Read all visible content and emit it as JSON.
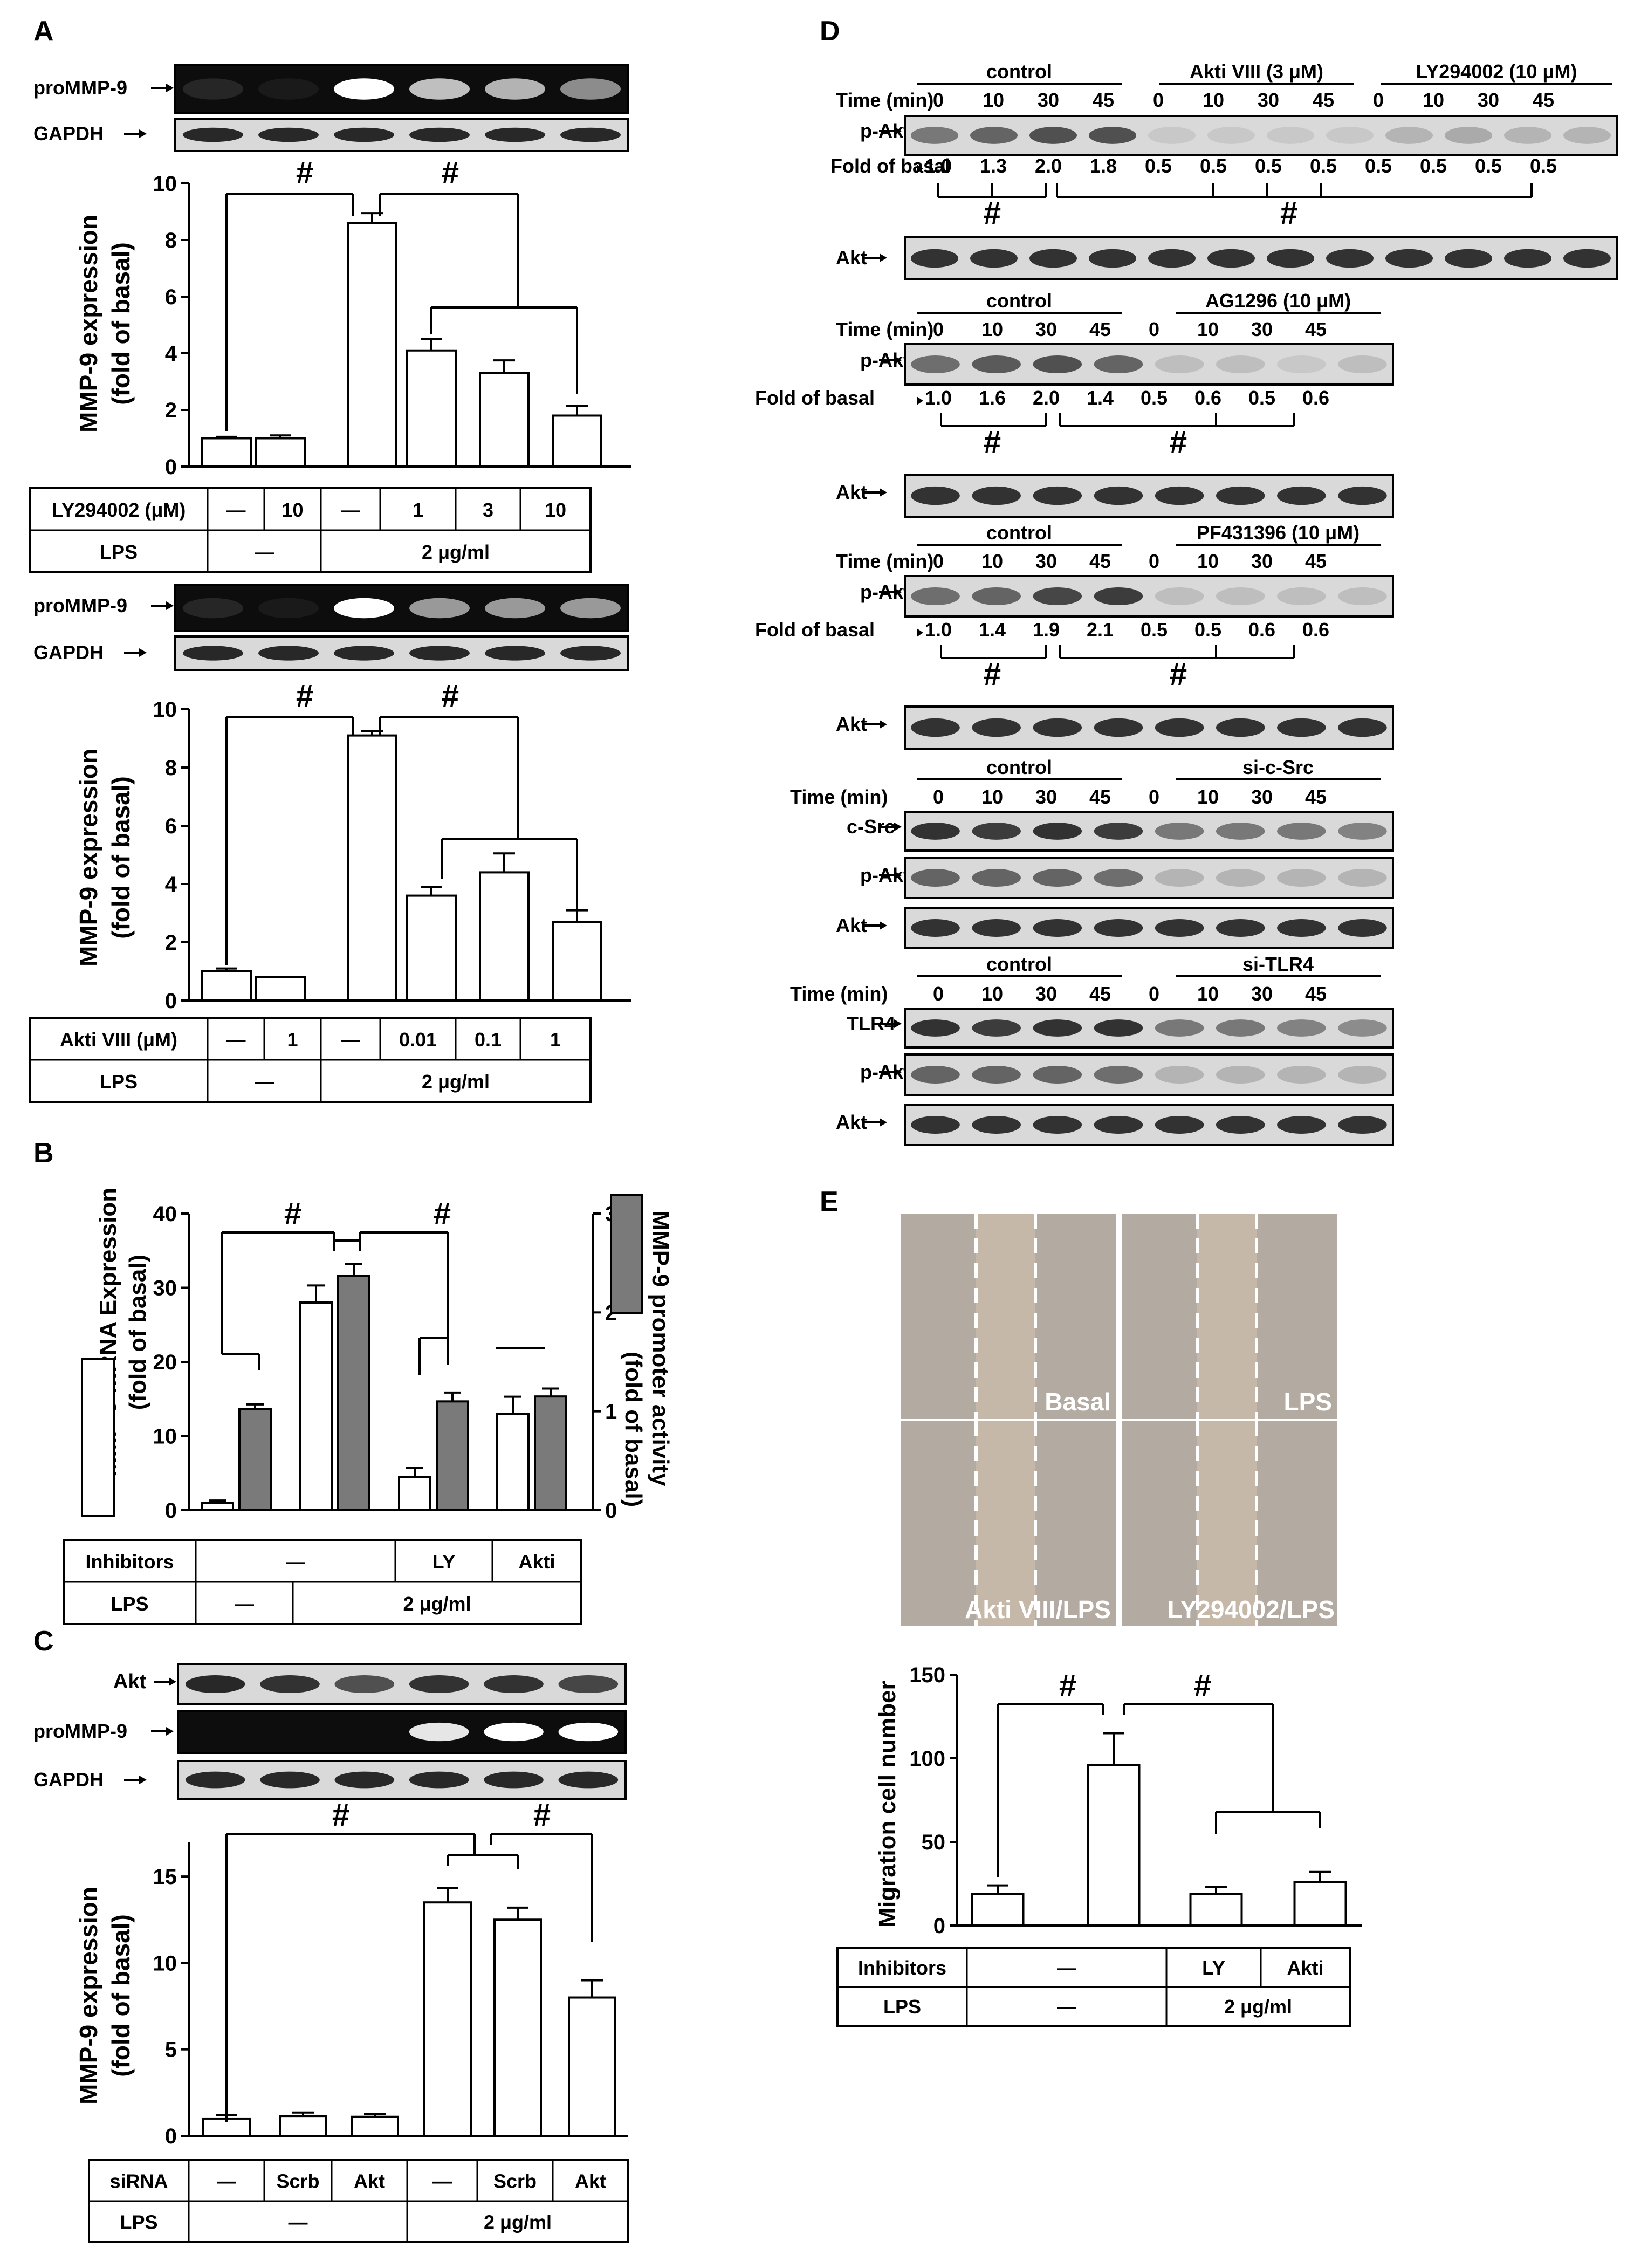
{
  "colors": {
    "ink": "#000000",
    "bar_open": "#ffffff",
    "bar_gray": "#7a7a7a",
    "gel_bg": "#d9d9d9",
    "gel_dark_bg": "#0d0d0d"
  },
  "panels": {
    "A": "A",
    "B": "B",
    "C": "C",
    "D": "D",
    "E": "E"
  },
  "common": {
    "lps_label": "LPS",
    "dash": "—",
    "lps_dose": "2 μg/ml",
    "sig": "#",
    "promoter_label": "proMMP-9",
    "gapdh_label": "GAPDH",
    "akt_label": "Akt",
    "pakt_label": "p-Akt",
    "time_label": "Time (min)",
    "fold_label": "Fold of basal",
    "control_label": "control",
    "inhibitors_label": "Inhibitors",
    "ly_short": "LY",
    "akti_short": "Akti"
  },
  "chart_data": [
    {
      "type": "bar",
      "id": "A1",
      "categories": [
        "—",
        "10",
        "—",
        "1",
        "3",
        "10"
      ],
      "values": [
        1.0,
        1.0,
        8.6,
        4.1,
        3.3,
        1.8
      ],
      "errors": [
        0.05,
        0.1,
        0.35,
        0.4,
        0.45,
        0.35
      ],
      "ylabel_line1": "MMP-9 expression",
      "ylabel_line2": "(fold of basal)",
      "ylim": [
        0,
        10
      ],
      "yticks": [
        "0",
        "2",
        "4",
        "6",
        "8",
        "10"
      ],
      "treatment_label": "LY294002 (μM)"
    },
    {
      "type": "bar",
      "id": "A2",
      "categories": [
        "—",
        "1",
        "—",
        "0.01",
        "0.1",
        "1"
      ],
      "values": [
        1.0,
        0.8,
        9.1,
        3.6,
        4.4,
        2.7
      ],
      "errors": [
        0.1,
        0.0,
        0.15,
        0.3,
        0.65,
        0.4
      ],
      "ylabel_line1": "MMP-9 expression",
      "ylabel_line2": "(fold of basal)",
      "ylim": [
        0,
        10
      ],
      "yticks": [
        "0",
        "2",
        "4",
        "6",
        "8",
        "10"
      ],
      "treatment_label": "Akti VIII (μM)"
    },
    {
      "type": "bar",
      "id": "B",
      "categories": [
        "Basal",
        "LPS",
        "LY/LPS",
        "Akti/LPS"
      ],
      "series": [
        {
          "name": "MMP-9 mRNA Expression (fold of basal)",
          "values": [
            1.0,
            28.0,
            4.5,
            13.0
          ],
          "errors": [
            0.3,
            2.3,
            1.2,
            2.3
          ],
          "ylim": [
            0,
            40
          ],
          "yticks": [
            "0",
            "10",
            "20",
            "30",
            "40"
          ]
        },
        {
          "name": "MMP-9 promoter activity (fold of basal)",
          "values": [
            1.02,
            2.37,
            1.1,
            1.15
          ],
          "errors": [
            0.05,
            0.12,
            0.09,
            0.08
          ],
          "ylim": [
            0,
            3
          ],
          "yticks": [
            "0",
            "1",
            "2",
            "3"
          ]
        }
      ],
      "ylabel_left_1": "MMP-9 mRNA Expression",
      "ylabel_left_2": "(fold of basal)",
      "ylabel_right_1": "MMP-9 promoter activity",
      "ylabel_right_2": "(fold of basal)"
    },
    {
      "type": "bar",
      "id": "C",
      "categories": [
        "—",
        "Scrb",
        "Akt",
        "—",
        "Scrb",
        "Akt"
      ],
      "values": [
        1.0,
        1.15,
        1.1,
        13.5,
        12.5,
        8.0
      ],
      "errors": [
        0.2,
        0.2,
        0.15,
        0.85,
        0.7,
        1.0
      ],
      "ylabel_line1": "MMP-9 expression",
      "ylabel_line2": "(fold of basal)",
      "ylim": [
        0,
        17
      ],
      "yticks": [
        "0",
        "5",
        "10",
        "15"
      ],
      "treatment_label": "siRNA"
    },
    {
      "type": "bar",
      "id": "E",
      "categories": [
        "Basal",
        "LPS",
        "LY/LPS",
        "Akti/LPS"
      ],
      "values": [
        19,
        96,
        19,
        26
      ],
      "errors": [
        5,
        19,
        4,
        6
      ],
      "ylabel": "Migration cell number",
      "ylim": [
        0,
        150
      ],
      "yticks": [
        "0",
        "50",
        "100",
        "150"
      ]
    }
  ],
  "panel_D": {
    "blot1": {
      "group_a": "Akti VIII (3 μM)",
      "group_b": "LY294002 (10 μM)",
      "times": [
        "0",
        "10",
        "30",
        "45",
        "0",
        "10",
        "30",
        "45",
        "0",
        "10",
        "30",
        "45"
      ],
      "folds": [
        "1.0",
        "1.3",
        "2.0",
        "1.8",
        "0.5",
        "0.5",
        "0.5",
        "0.5",
        "0.5",
        "0.5",
        "0.5",
        "0.5"
      ]
    },
    "blot2": {
      "group_b": "AG1296 (10 μM)",
      "times": [
        "0",
        "10",
        "30",
        "45",
        "0",
        "10",
        "30",
        "45"
      ],
      "folds": [
        "1.0",
        "1.6",
        "2.0",
        "1.4",
        "0.5",
        "0.6",
        "0.5",
        "0.6"
      ]
    },
    "blot3": {
      "group_b": "PF431396 (10 μM)",
      "times": [
        "0",
        "10",
        "30",
        "45",
        "0",
        "10",
        "30",
        "45"
      ],
      "folds": [
        "1.0",
        "1.4",
        "1.9",
        "2.1",
        "0.5",
        "0.5",
        "0.6",
        "0.6"
      ]
    },
    "blot4": {
      "group_b": "si-c-Src",
      "times": [
        "0",
        "10",
        "30",
        "45",
        "0",
        "10",
        "30",
        "45"
      ],
      "row_label": "c-Src"
    },
    "blot5": {
      "group_b": "si-TLR4",
      "times": [
        "0",
        "10",
        "30",
        "45",
        "0",
        "10",
        "30",
        "45"
      ],
      "row_label": "TLR4"
    }
  },
  "panel_E": {
    "basal": "Basal",
    "lps": "LPS",
    "akti_lps": "Akti VIII/LPS",
    "ly_lps": "LY294002/LPS"
  }
}
